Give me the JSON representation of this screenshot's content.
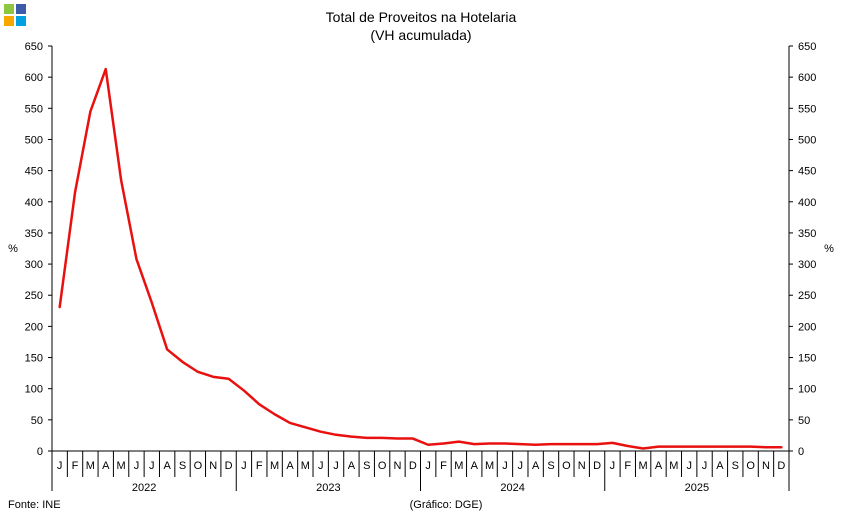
{
  "chart_data": {
    "type": "line",
    "title": "Total de Proveitos na Hotelaria",
    "subtitle": "(VH acumulada)",
    "ylabel_left": "%",
    "ylabel_right": "%",
    "ylim": [
      0,
      650
    ],
    "y_ticks": [
      "0",
      "50",
      "100",
      "150",
      "200",
      "250",
      "300",
      "350",
      "400",
      "450",
      "500",
      "550",
      "600",
      "650"
    ],
    "month_labels": [
      "J",
      "F",
      "M",
      "A",
      "M",
      "J",
      "J",
      "A",
      "S",
      "O",
      "N",
      "D"
    ],
    "years": [
      "2022",
      "2023",
      "2024",
      "2025"
    ],
    "line_color": "#e8110f",
    "series": [
      {
        "values": [
          231,
          415,
          545,
          613,
          435,
          308,
          238,
          163,
          143,
          127,
          119,
          116,
          97,
          75,
          59,
          45,
          38,
          31,
          26,
          23,
          21,
          21,
          20,
          20,
          10,
          12,
          15,
          11,
          12,
          12,
          11,
          10,
          11,
          11,
          11,
          11,
          13,
          8,
          4,
          7,
          7,
          7,
          7,
          7,
          7,
          7,
          6,
          6
        ]
      }
    ]
  },
  "footer": {
    "source": "Fonte: INE",
    "credit": "(Gráfico: DGE)"
  },
  "logo": {
    "colors": [
      "#8dc63f",
      "#3c5ba9",
      "#f7a800",
      "#00a0e3"
    ]
  }
}
